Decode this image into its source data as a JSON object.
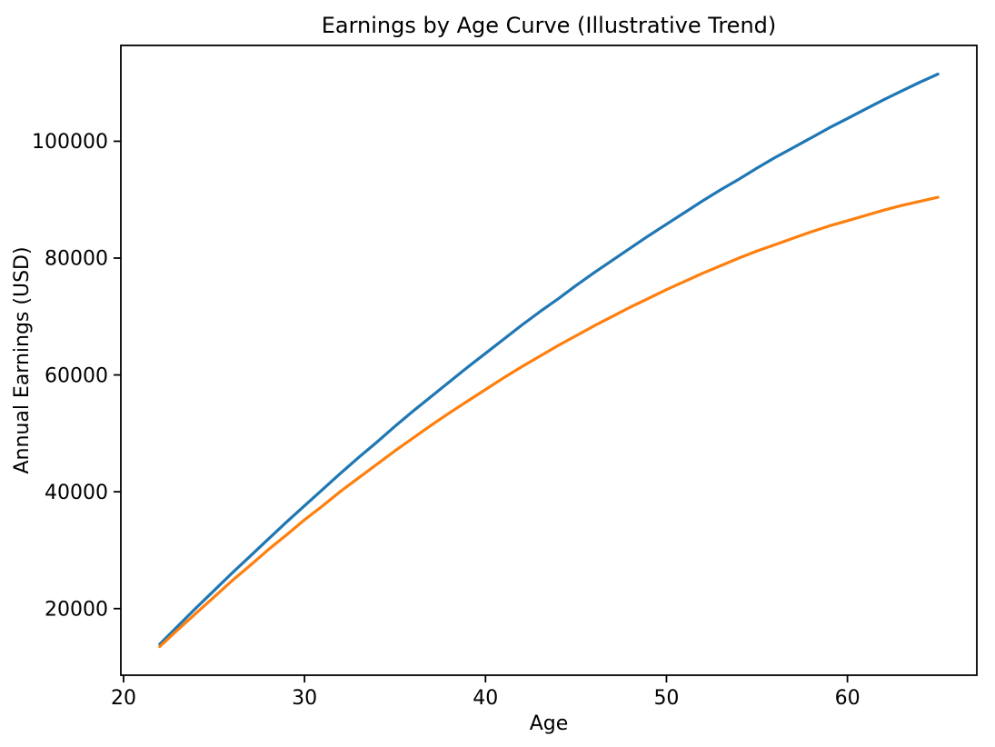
{
  "chart_data": {
    "type": "line",
    "title": "Earnings by Age Curve (Illustrative Trend)",
    "xlabel": "Age",
    "ylabel": "Annual Earnings (USD)",
    "xlim": [
      19.85,
      67.15
    ],
    "ylim": [
      8600,
      116400
    ],
    "x_ticks": [
      20,
      30,
      40,
      50,
      60
    ],
    "y_ticks": [
      20000,
      40000,
      60000,
      80000,
      100000
    ],
    "grid": false,
    "legend": false,
    "markers": false,
    "background_color": "#ffffff",
    "text_color": "#000000",
    "x": [
      22,
      23,
      24,
      25,
      26,
      27,
      28,
      29,
      30,
      31,
      32,
      33,
      34,
      35,
      36,
      37,
      38,
      39,
      40,
      41,
      42,
      43,
      44,
      45,
      46,
      47,
      48,
      49,
      50,
      51,
      52,
      53,
      54,
      55,
      56,
      57,
      58,
      59,
      60,
      61,
      62,
      63,
      64,
      65
    ],
    "series": [
      {
        "name": "series_1_blue",
        "color": "#1f77b4",
        "values": [
          13900,
          17000,
          20100,
          23100,
          26100,
          29000,
          31900,
          34800,
          37600,
          40400,
          43200,
          45900,
          48500,
          51200,
          53800,
          56300,
          58800,
          61300,
          63700,
          66100,
          68500,
          70800,
          73000,
          75300,
          77500,
          79600,
          81700,
          83800,
          85800,
          87800,
          89800,
          91700,
          93500,
          95400,
          97200,
          98900,
          100600,
          102300,
          103900,
          105500,
          107100,
          108600,
          110100,
          111500
        ]
      },
      {
        "name": "series_2_orange",
        "color": "#ff7f0e",
        "values": [
          13500,
          16400,
          19200,
          22000,
          24800,
          27400,
          30100,
          32600,
          35200,
          37600,
          40100,
          42400,
          44700,
          47000,
          49200,
          51400,
          53500,
          55500,
          57500,
          59500,
          61400,
          63200,
          65000,
          66700,
          68400,
          70000,
          71600,
          73100,
          74600,
          76000,
          77400,
          78700,
          80000,
          81200,
          82300,
          83400,
          84500,
          85500,
          86400,
          87300,
          88200,
          89000,
          89700,
          90400
        ]
      }
    ]
  }
}
